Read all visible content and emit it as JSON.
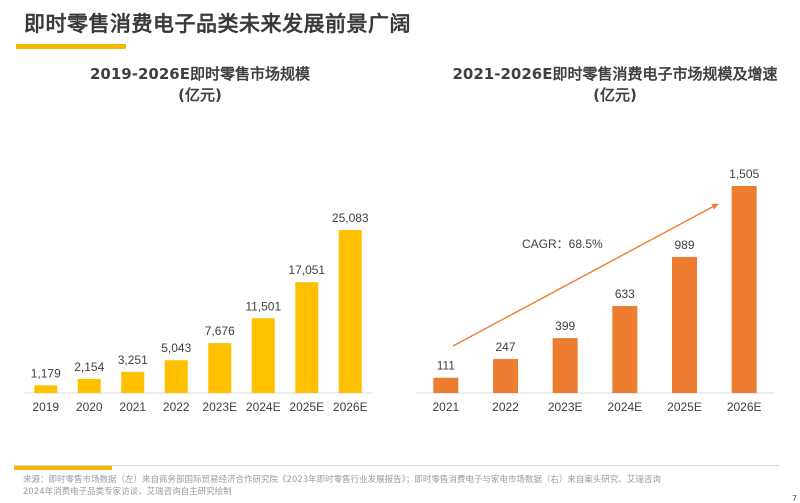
{
  "page": {
    "title": "即时零售消费电子品类未来发展前景广阔",
    "accent_color": "#f5b800",
    "footer_line1": "来源：即时零售市场数据（左）来自商务部国际贸易经济合作研究院《2023年即时零售行业发展报告》；即时零售消费电子与家电市场数据（右）来自案头研究、艾瑞咨询",
    "footer_line2": "2024年消费电子品类专家访谈，艾瑞咨询自主研究绘制",
    "page_number": "7"
  },
  "chart_data": [
    {
      "type": "bar",
      "title": "2019-2026E即时零售市场规模",
      "subtitle": "(亿元)",
      "categories": [
        "2019",
        "2020",
        "2021",
        "2022",
        "2023E",
        "2024E",
        "2025E",
        "2026E"
      ],
      "values": [
        1179,
        2154,
        3251,
        5043,
        7676,
        11501,
        17051,
        25083
      ],
      "labels": [
        "1,179",
        "2,154",
        "3,251",
        "5,043",
        "7,676",
        "11,501",
        "17,051",
        "25,083"
      ],
      "color": "#ffc000",
      "xlabel": "",
      "ylabel": "",
      "ylim": [
        0,
        25083
      ],
      "grid": false,
      "legend": "none"
    },
    {
      "type": "bar",
      "title": "2021-2026E即时零售消费电子市场规模及增速",
      "subtitle": "(亿元)",
      "categories": [
        "2021",
        "2022",
        "2023E",
        "2024E",
        "2025E",
        "2026E"
      ],
      "values": [
        111,
        247,
        399,
        633,
        989,
        1505
      ],
      "labels": [
        "111",
        "247",
        "399",
        "633",
        "989",
        "1,505"
      ],
      "color": "#ed7d31",
      "annotation": "CAGR：68.5%",
      "xlabel": "",
      "ylabel": "",
      "ylim": [
        0,
        1505
      ],
      "grid": false,
      "legend": "none"
    }
  ]
}
